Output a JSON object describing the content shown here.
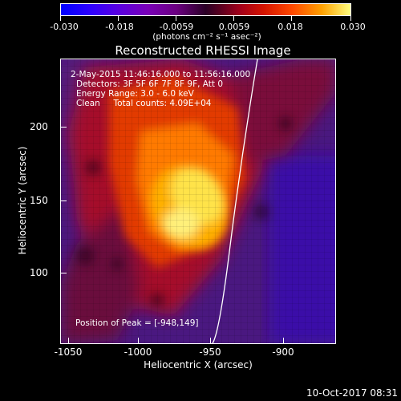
{
  "colorbar": {
    "ticks": [
      "-0.030",
      "-0.018",
      "-0.0059",
      "0.0059",
      "0.018",
      "0.030"
    ],
    "units": "(photons cm⁻² s⁻¹ asec⁻²)"
  },
  "title": "Reconstructed RHESSI Image",
  "info": {
    "line1": "2-May-2015 11:46:16.000 to 11:56:16.000",
    "line2": "Detectors: 3F 5F 6F 7F 8F 9F, Att 0",
    "line3": "Energy Range: 3.0 - 6.0 keV",
    "line4": "Clean     Total counts: 4.09E+04",
    "peak": "Position of Peak = [-948,149]"
  },
  "axes": {
    "x_ticks": [
      "-1050",
      "-1000",
      "-950",
      "-900"
    ],
    "y_ticks": [
      "200",
      "150",
      "100"
    ],
    "x_title": "Heliocentric X (arcsec)",
    "y_title": "Heliocentric Y (arcsec)"
  },
  "footer": "10-Oct-2017 08:31"
}
